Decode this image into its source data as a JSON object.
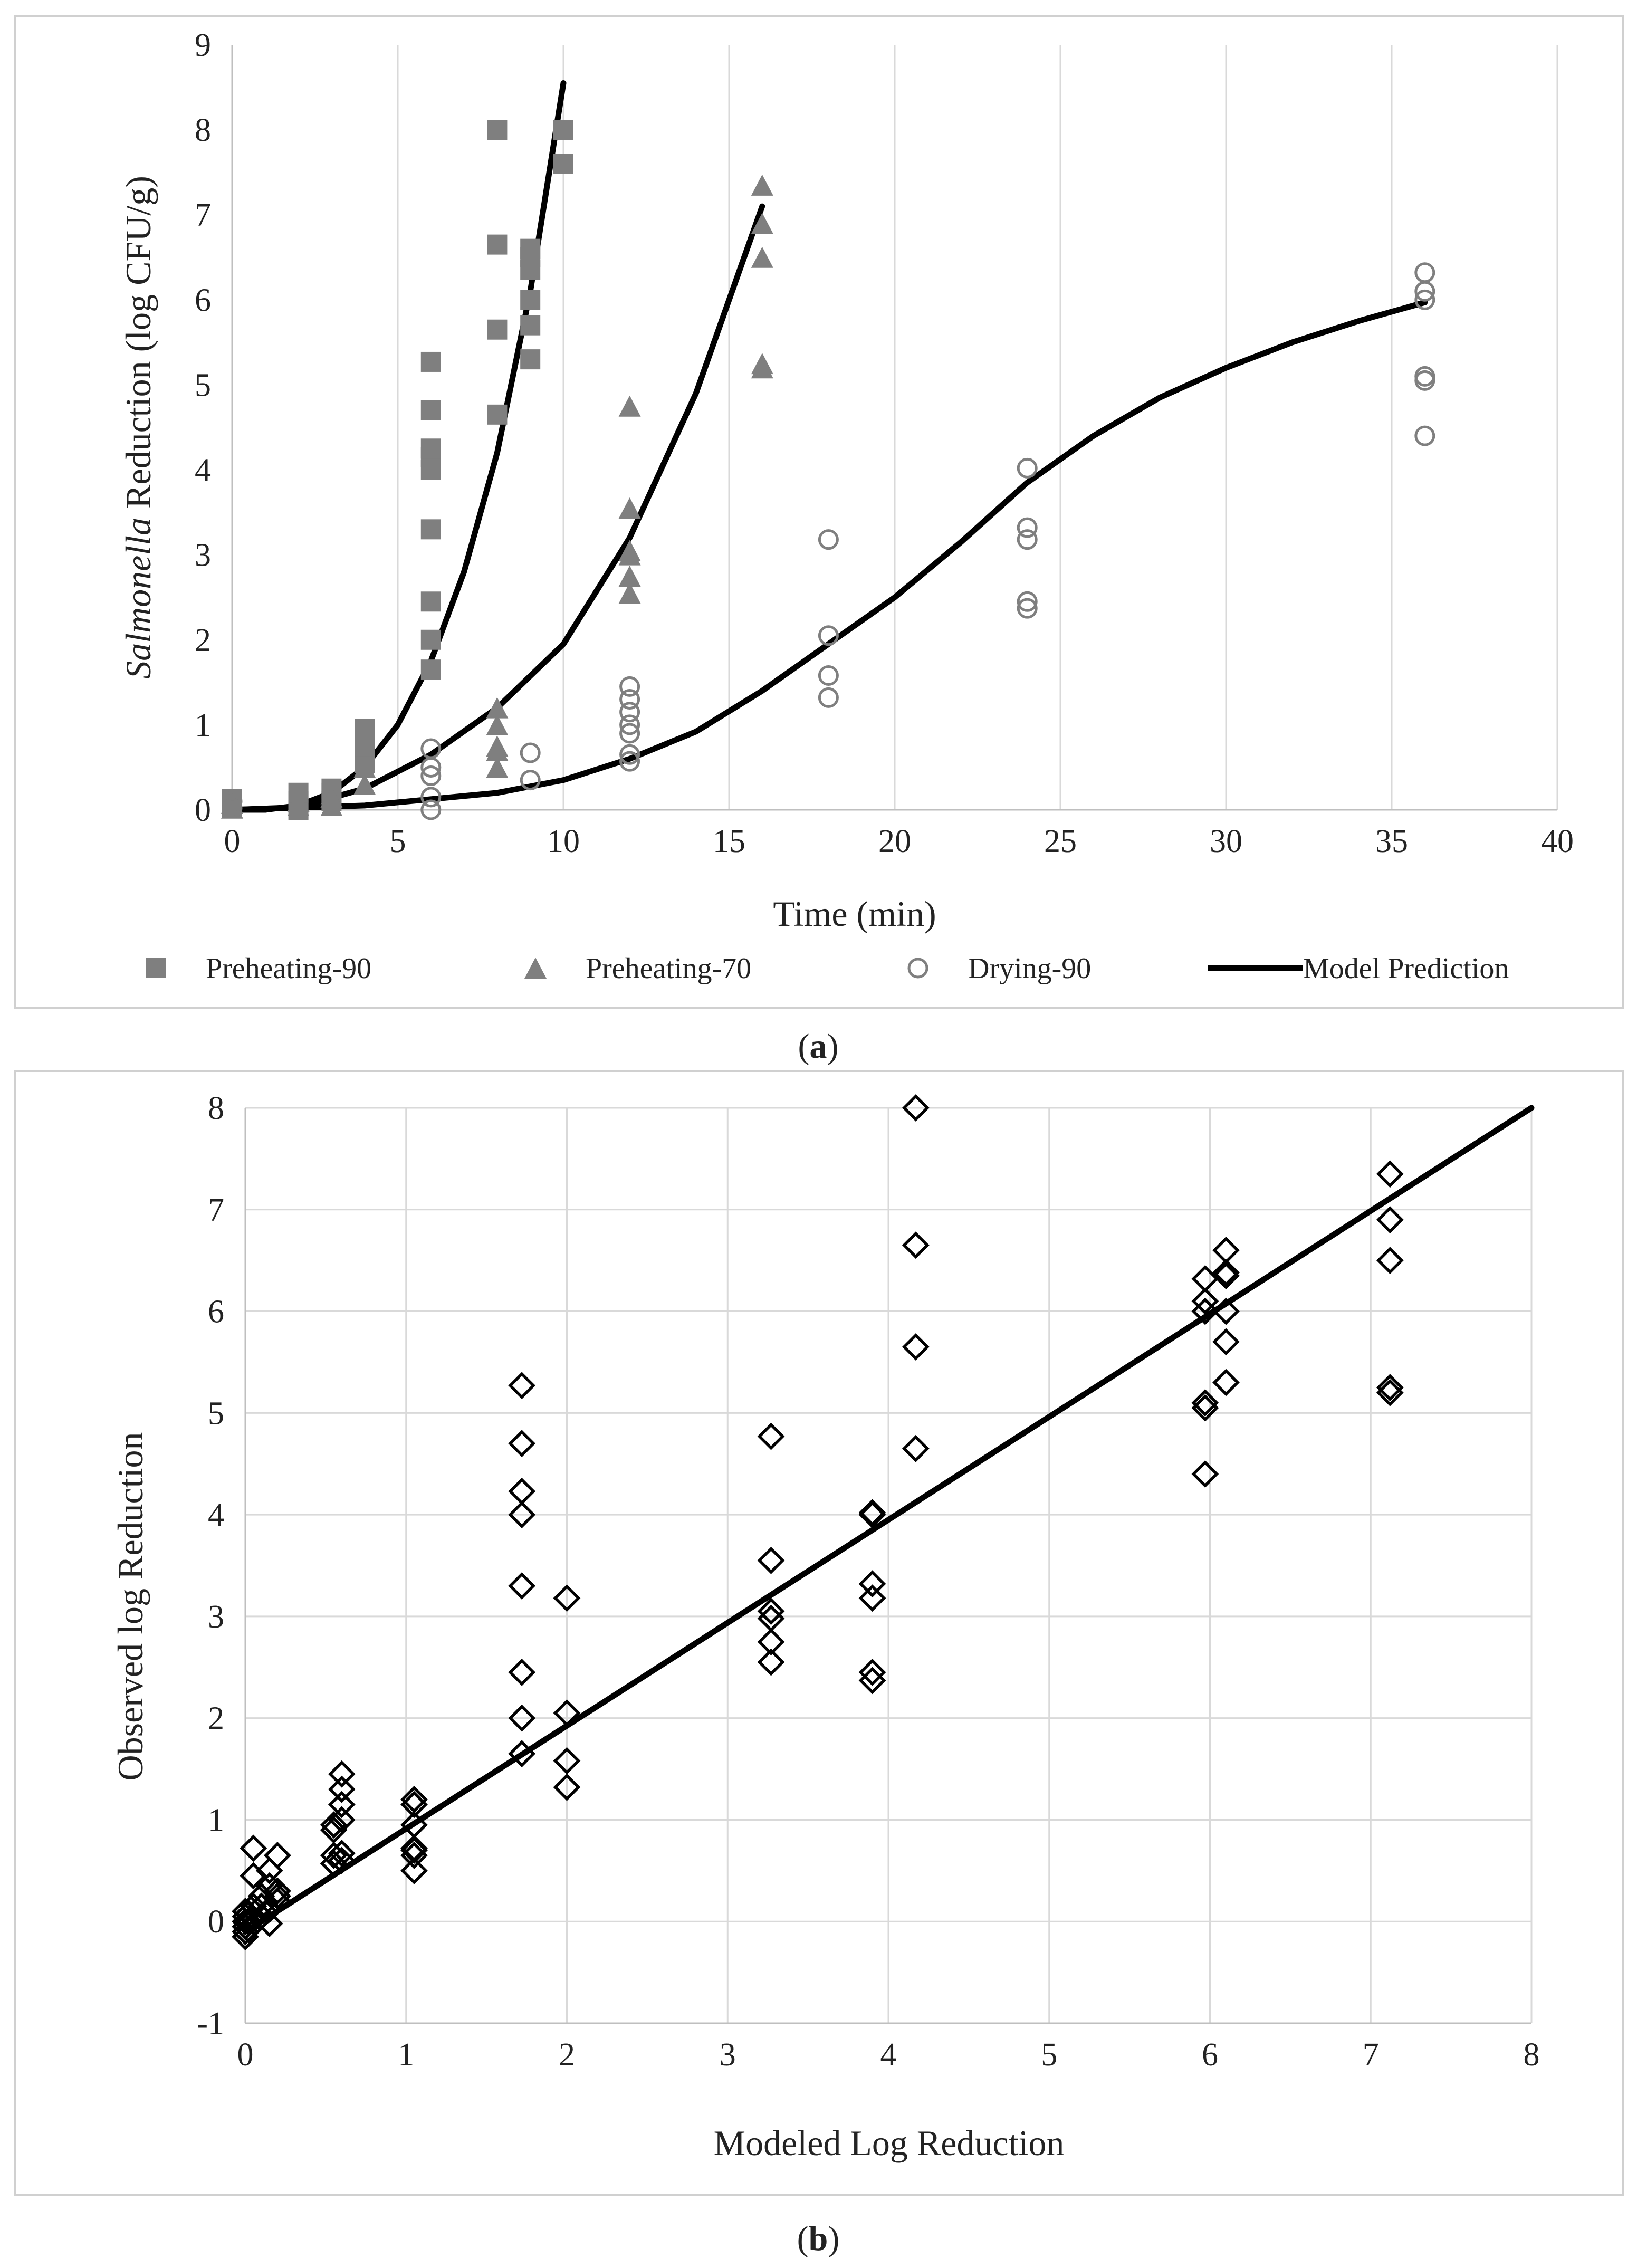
{
  "chart_data": [
    {
      "type": "scatter",
      "panel_label": [
        "(",
        "a",
        ")"
      ],
      "xlabel": "Time (min)",
      "ylabel_parts": [
        "Salmonella",
        " Reduction (log CFU/g)"
      ],
      "xlim": [
        0,
        40
      ],
      "ylim": [
        0,
        9
      ],
      "xticks": [
        "0",
        "5",
        "10",
        "15",
        "20",
        "25",
        "30",
        "35",
        "40"
      ],
      "yticks": [
        "0",
        "1",
        "2",
        "3",
        "4",
        "5",
        "6",
        "7",
        "8",
        "9"
      ],
      "grid": "vertical",
      "legend_position": "bottom",
      "colors": {
        "markers": "#7f7f7f",
        "line": "#000000"
      },
      "series": [
        {
          "name": "Preheating-90",
          "marker": "square",
          "points": [
            [
              0,
              0.02
            ],
            [
              0,
              0.05
            ],
            [
              0,
              0.1
            ],
            [
              0,
              0.13
            ],
            [
              2,
              0.0
            ],
            [
              2,
              0.1
            ],
            [
              2,
              0.2
            ],
            [
              3,
              0.1
            ],
            [
              3,
              0.2
            ],
            [
              3,
              0.25
            ],
            [
              4,
              0.55
            ],
            [
              4,
              0.75
            ],
            [
              4,
              0.85
            ],
            [
              4,
              0.95
            ],
            [
              6,
              1.65
            ],
            [
              6,
              2.0
            ],
            [
              6,
              2.45
            ],
            [
              6,
              3.3
            ],
            [
              6,
              4.0
            ],
            [
              6,
              4.15
            ],
            [
              6,
              4.25
            ],
            [
              6,
              4.7
            ],
            [
              6,
              5.27
            ],
            [
              8,
              4.65
            ],
            [
              8,
              5.65
            ],
            [
              8,
              6.65
            ],
            [
              8,
              8.0
            ],
            [
              9,
              5.3
            ],
            [
              9,
              5.7
            ],
            [
              9,
              6.0
            ],
            [
              9,
              6.35
            ],
            [
              9,
              6.5
            ],
            [
              9,
              6.6
            ],
            [
              10,
              7.6
            ],
            [
              10,
              8.0
            ]
          ]
        },
        {
          "name": "Preheating-70",
          "marker": "triangle",
          "points": [
            [
              0,
              0.02
            ],
            [
              0,
              0.08
            ],
            [
              2,
              0.05
            ],
            [
              2,
              0.1
            ],
            [
              3,
              0.05
            ],
            [
              3,
              0.15
            ],
            [
              4,
              0.3
            ],
            [
              4,
              0.5
            ],
            [
              8,
              0.5
            ],
            [
              8,
              0.7
            ],
            [
              8,
              0.75
            ],
            [
              8,
              1.0
            ],
            [
              8,
              1.2
            ],
            [
              12,
              2.55
            ],
            [
              12,
              2.75
            ],
            [
              12,
              3.0
            ],
            [
              12,
              3.05
            ],
            [
              12,
              3.55
            ],
            [
              12,
              4.75
            ],
            [
              16,
              5.2
            ],
            [
              16,
              5.25
            ],
            [
              16,
              6.5
            ],
            [
              16,
              6.9
            ],
            [
              16,
              7.35
            ]
          ]
        },
        {
          "name": "Drying-90",
          "marker": "circle",
          "points": [
            [
              0,
              0.02
            ],
            [
              0,
              0.1
            ],
            [
              6,
              0.0
            ],
            [
              6,
              0.15
            ],
            [
              6,
              0.4
            ],
            [
              6,
              0.5
            ],
            [
              6,
              0.72
            ],
            [
              9,
              0.35
            ],
            [
              9,
              0.67
            ],
            [
              12,
              0.57
            ],
            [
              12,
              0.65
            ],
            [
              12,
              0.9
            ],
            [
              12,
              1.0
            ],
            [
              12,
              1.15
            ],
            [
              12,
              1.3
            ],
            [
              12,
              1.45
            ],
            [
              18,
              1.32
            ],
            [
              18,
              1.58
            ],
            [
              18,
              2.05
            ],
            [
              18,
              3.18
            ],
            [
              24,
              2.37
            ],
            [
              24,
              2.45
            ],
            [
              24,
              3.18
            ],
            [
              24,
              3.32
            ],
            [
              24,
              4.02
            ],
            [
              36,
              4.4
            ],
            [
              36,
              5.05
            ],
            [
              36,
              5.1
            ],
            [
              36,
              6.0
            ],
            [
              36,
              6.1
            ],
            [
              36,
              6.32
            ]
          ]
        },
        {
          "name": "Model Prediction",
          "marker": "line",
          "curves": [
            [
              [
                0,
                0
              ],
              [
                1,
                0.0
              ],
              [
                2,
                0.05
              ],
              [
                3,
                0.2
              ],
              [
                4,
                0.5
              ],
              [
                5,
                1.0
              ],
              [
                6,
                1.75
              ],
              [
                7,
                2.8
              ],
              [
                8,
                4.2
              ],
              [
                9,
                6.1
              ],
              [
                10,
                8.55
              ]
            ],
            [
              [
                0,
                0
              ],
              [
                2,
                0.03
              ],
              [
                4,
                0.25
              ],
              [
                6,
                0.65
              ],
              [
                8,
                1.2
              ],
              [
                10,
                1.95
              ],
              [
                12,
                3.2
              ],
              [
                14,
                4.9
              ],
              [
                16,
                7.1
              ]
            ],
            [
              [
                0,
                0
              ],
              [
                4,
                0.05
              ],
              [
                8,
                0.2
              ],
              [
                10,
                0.35
              ],
              [
                12,
                0.6
              ],
              [
                14,
                0.92
              ],
              [
                16,
                1.4
              ],
              [
                18,
                1.95
              ],
              [
                20,
                2.5
              ],
              [
                22,
                3.15
              ],
              [
                24,
                3.85
              ],
              [
                26,
                4.4
              ],
              [
                28,
                4.85
              ],
              [
                30,
                5.2
              ],
              [
                32,
                5.5
              ],
              [
                34,
                5.75
              ],
              [
                36,
                5.97
              ]
            ]
          ]
        }
      ]
    },
    {
      "type": "scatter",
      "panel_label": [
        "(",
        "b",
        ")"
      ],
      "xlabel": "Modeled Log Reduction",
      "ylabel": "Observed log Reduction",
      "xlim": [
        0,
        8
      ],
      "ylim": [
        -1,
        8
      ],
      "xticks": [
        "0",
        "1",
        "2",
        "3",
        "4",
        "5",
        "6",
        "7",
        "8"
      ],
      "yticks": [
        "-1",
        "0",
        "1",
        "2",
        "3",
        "4",
        "5",
        "6",
        "7",
        "8"
      ],
      "grid": "both",
      "colors": {
        "markers": "#000000",
        "line": "#000000"
      },
      "series": [
        {
          "marker": "diamond",
          "points": [
            [
              0,
              -0.15
            ],
            [
              0,
              -0.1
            ],
            [
              0,
              -0.05
            ],
            [
              0,
              0.0
            ],
            [
              0,
              0.05
            ],
            [
              0,
              0.1
            ],
            [
              0.02,
              -0.08
            ],
            [
              0.02,
              0.0
            ],
            [
              0.02,
              0.08
            ],
            [
              0.05,
              0.15
            ],
            [
              0.05,
              0.45
            ],
            [
              0.05,
              0.72
            ],
            [
              0.05,
              0.02
            ],
            [
              0.1,
              0.05
            ],
            [
              0.1,
              0.15
            ],
            [
              0.1,
              0.25
            ],
            [
              0.15,
              -0.02
            ],
            [
              0.15,
              0.12
            ],
            [
              0.15,
              0.35
            ],
            [
              0.15,
              0.5
            ],
            [
              0.2,
              0.2
            ],
            [
              0.2,
              0.25
            ],
            [
              0.2,
              0.3
            ],
            [
              0.2,
              0.65
            ],
            [
              0.55,
              0.57
            ],
            [
              0.55,
              0.65
            ],
            [
              0.55,
              0.9
            ],
            [
              0.55,
              0.95
            ],
            [
              0.6,
              0.6
            ],
            [
              0.6,
              0.67
            ],
            [
              0.6,
              1.0
            ],
            [
              0.6,
              1.15
            ],
            [
              0.6,
              1.3
            ],
            [
              0.6,
              1.45
            ],
            [
              1.05,
              0.5
            ],
            [
              1.05,
              0.65
            ],
            [
              1.05,
              0.7
            ],
            [
              1.05,
              0.72
            ],
            [
              1.05,
              0.95
            ],
            [
              1.05,
              1.15
            ],
            [
              1.05,
              1.2
            ],
            [
              1.72,
              1.65
            ],
            [
              1.72,
              2.0
            ],
            [
              1.72,
              2.45
            ],
            [
              1.72,
              3.3
            ],
            [
              1.72,
              4.0
            ],
            [
              1.72,
              4.23
            ],
            [
              1.72,
              4.7
            ],
            [
              1.72,
              5.27
            ],
            [
              2.0,
              1.32
            ],
            [
              2.0,
              1.58
            ],
            [
              2.0,
              2.05
            ],
            [
              2.0,
              3.18
            ],
            [
              3.27,
              2.55
            ],
            [
              3.27,
              2.75
            ],
            [
              3.27,
              2.98
            ],
            [
              3.27,
              3.05
            ],
            [
              3.27,
              3.55
            ],
            [
              3.27,
              4.77
            ],
            [
              3.9,
              2.37
            ],
            [
              3.9,
              2.45
            ],
            [
              3.9,
              3.18
            ],
            [
              3.9,
              3.32
            ],
            [
              3.9,
              4.0
            ],
            [
              3.9,
              4.02
            ],
            [
              4.17,
              4.65
            ],
            [
              4.17,
              5.65
            ],
            [
              4.17,
              6.65
            ],
            [
              4.17,
              8.0
            ],
            [
              5.97,
              4.4
            ],
            [
              5.97,
              5.05
            ],
            [
              5.97,
              5.1
            ],
            [
              5.97,
              6.0
            ],
            [
              5.97,
              6.1
            ],
            [
              5.97,
              6.32
            ],
            [
              6.1,
              5.3
            ],
            [
              6.1,
              5.7
            ],
            [
              6.1,
              6.0
            ],
            [
              6.1,
              6.35
            ],
            [
              6.1,
              6.38
            ],
            [
              6.1,
              6.6
            ],
            [
              7.12,
              5.2
            ],
            [
              7.12,
              5.25
            ],
            [
              7.12,
              6.5
            ],
            [
              7.12,
              6.9
            ],
            [
              7.12,
              7.35
            ]
          ]
        },
        {
          "marker": "line",
          "curves": [
            [
              [
                0,
                -0.1
              ],
              [
                8,
                8.0
              ]
            ]
          ]
        }
      ]
    }
  ]
}
